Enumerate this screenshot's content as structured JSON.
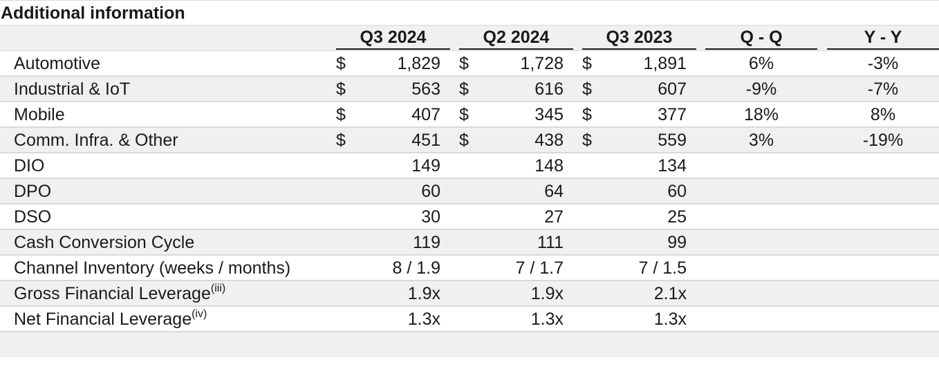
{
  "table": {
    "title": "Additional information",
    "columns": [
      "Q3 2024",
      "Q2 2024",
      "Q3 2023",
      "Q - Q",
      "Y - Y"
    ],
    "rows": [
      {
        "label": "Automotive",
        "sup": "",
        "cur": "$",
        "q3_2024": "1,829",
        "q2_2024": "1,728",
        "q3_2023": "1,891",
        "qq": "6%",
        "yy": "-3%"
      },
      {
        "label": "Industrial & IoT",
        "sup": "",
        "cur": "$",
        "q3_2024": "563",
        "q2_2024": "616",
        "q3_2023": "607",
        "qq": "-9%",
        "yy": "-7%"
      },
      {
        "label": "Mobile",
        "sup": "",
        "cur": "$",
        "q3_2024": "407",
        "q2_2024": "345",
        "q3_2023": "377",
        "qq": "18%",
        "yy": "8%"
      },
      {
        "label": "Comm. Infra. & Other",
        "sup": "",
        "cur": "$",
        "q3_2024": "451",
        "q2_2024": "438",
        "q3_2023": "559",
        "qq": "3%",
        "yy": "-19%"
      },
      {
        "label": "DIO",
        "sup": "",
        "cur": "",
        "q3_2024": "149",
        "q2_2024": "148",
        "q3_2023": "134",
        "qq": "",
        "yy": ""
      },
      {
        "label": "DPO",
        "sup": "",
        "cur": "",
        "q3_2024": "60",
        "q2_2024": "64",
        "q3_2023": "60",
        "qq": "",
        "yy": ""
      },
      {
        "label": "DSO",
        "sup": "",
        "cur": "",
        "q3_2024": "30",
        "q2_2024": "27",
        "q3_2023": "25",
        "qq": "",
        "yy": ""
      },
      {
        "label": "Cash Conversion Cycle",
        "sup": "",
        "cur": "",
        "q3_2024": "119",
        "q2_2024": "111",
        "q3_2023": "99",
        "qq": "",
        "yy": ""
      },
      {
        "label": "Channel Inventory (weeks / months)",
        "sup": "",
        "cur": "",
        "q3_2024": "8 / 1.9",
        "q2_2024": "7 / 1.7",
        "q3_2023": "7 / 1.5",
        "qq": "",
        "yy": ""
      },
      {
        "label": "Gross Financial Leverage",
        "sup": "(iii)",
        "cur": "",
        "q3_2024": "1.9x",
        "q2_2024": "1.9x",
        "q3_2023": "2.1x",
        "qq": "",
        "yy": ""
      },
      {
        "label": "Net Financial Leverage",
        "sup": "(iv)",
        "cur": "",
        "q3_2024": "1.3x",
        "q2_2024": "1.3x",
        "q3_2023": "1.3x",
        "qq": "",
        "yy": ""
      }
    ]
  }
}
